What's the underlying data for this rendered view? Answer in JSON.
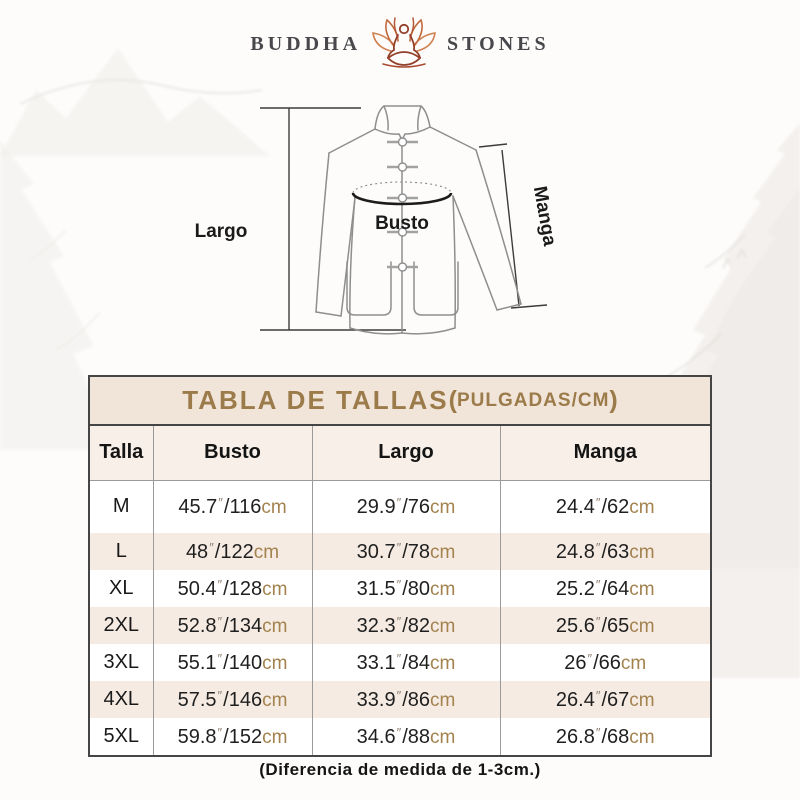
{
  "brand": {
    "name_left": "BUDDHA",
    "name_right": "STONES",
    "icon": "lotus-meditation-icon"
  },
  "diagram": {
    "largo_label": "Largo",
    "busto_label": "Busto",
    "manga_label": "Manga"
  },
  "punct": {
    "open_paren": "(",
    "close_paren": ")"
  },
  "units": {
    "inch_mark": "″",
    "slash": "/",
    "cm": "cm"
  },
  "size_chart": {
    "title": "TABLA DE TALLAS",
    "subtitle": "PULGADAS/CM",
    "columns": [
      "Talla",
      "Busto",
      "Largo",
      "Manga"
    ],
    "rows": [
      {
        "talla": "M",
        "busto": {
          "in": "45.7",
          "cm": "116"
        },
        "largo": {
          "in": "29.9",
          "cm": "76"
        },
        "manga": {
          "in": "24.4",
          "cm": "62"
        }
      },
      {
        "talla": "L",
        "busto": {
          "in": "48",
          "cm": "122"
        },
        "largo": {
          "in": "30.7",
          "cm": "78"
        },
        "manga": {
          "in": "24.8",
          "cm": "63"
        }
      },
      {
        "talla": "XL",
        "busto": {
          "in": "50.4",
          "cm": "128"
        },
        "largo": {
          "in": "31.5",
          "cm": "80"
        },
        "manga": {
          "in": "25.2",
          "cm": "64"
        }
      },
      {
        "talla": "2XL",
        "busto": {
          "in": "52.8",
          "cm": "134"
        },
        "largo": {
          "in": "32.3",
          "cm": "82"
        },
        "manga": {
          "in": "25.6",
          "cm": "65"
        }
      },
      {
        "talla": "3XL",
        "busto": {
          "in": "55.1",
          "cm": "140"
        },
        "largo": {
          "in": "33.1",
          "cm": "84"
        },
        "manga": {
          "in": "26",
          "cm": "66"
        }
      },
      {
        "talla": "4XL",
        "busto": {
          "in": "57.5",
          "cm": "146"
        },
        "largo": {
          "in": "33.9",
          "cm": "86"
        },
        "manga": {
          "in": "26.4",
          "cm": "67"
        }
      },
      {
        "talla": "5XL",
        "busto": {
          "in": "59.8",
          "cm": "152"
        },
        "largo": {
          "in": "34.6",
          "cm": "88"
        },
        "manga": {
          "in": "26.8",
          "cm": "68"
        }
      }
    ]
  },
  "footer": {
    "note": "(Diferencia de medida de 1-3cm.)"
  },
  "colors": {
    "title_gold": "#9c7b4a",
    "cm_text": "#a3824e",
    "inch_mark": "#8d8070",
    "title_bar_bg": "#f1e4d9",
    "header_row_bg": "#f7efe8",
    "alt_row_bg": "#f5ebe3",
    "table_border": "#454545",
    "logo_text": "#48484c",
    "logo_lotus": "#b65a35"
  },
  "chart_data": {
    "type": "table",
    "title": "TABLA DE TALLAS (PULGADAS/CM)",
    "columns": [
      "Talla",
      "Busto",
      "Largo",
      "Manga"
    ],
    "rows": [
      [
        "M",
        "45.7″/116cm",
        "29.9″/76cm",
        "24.4″/62cm"
      ],
      [
        "L",
        "48″/122cm",
        "30.7″/78cm",
        "24.8″/63cm"
      ],
      [
        "XL",
        "50.4″/128cm",
        "31.5″/80cm",
        "25.2″/64cm"
      ],
      [
        "2XL",
        "52.8″/134cm",
        "32.3″/82cm",
        "25.6″/65cm"
      ],
      [
        "3XL",
        "55.1″/140cm",
        "33.1″/84cm",
        "26″/66cm"
      ],
      [
        "4XL",
        "57.5″/146cm",
        "33.9″/86cm",
        "26.4″/67cm"
      ],
      [
        "5XL",
        "59.8″/152cm",
        "34.6″/88cm",
        "26.8″/68cm"
      ]
    ],
    "footnote": "(Diferencia de medida de 1-3cm.)"
  }
}
